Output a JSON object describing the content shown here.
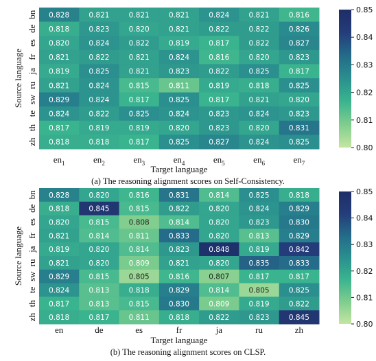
{
  "chart_data": [
    {
      "type": "heatmap",
      "caption": "(a) The reasoning alignment scores on Self-Consistency.",
      "xlabel": "Target language",
      "ylabel": "Source language",
      "x_ticks": [
        "en1",
        "en2",
        "en3",
        "en4",
        "en5",
        "en6",
        "en7"
      ],
      "y_ticks": [
        "bn",
        "de",
        "es",
        "fr",
        "ja",
        "ru",
        "sw",
        "te",
        "th",
        "zh"
      ],
      "values": [
        [
          0.828,
          0.821,
          0.821,
          0.821,
          0.824,
          0.821,
          0.816
        ],
        [
          0.818,
          0.823,
          0.82,
          0.821,
          0.822,
          0.822,
          0.826
        ],
        [
          0.82,
          0.824,
          0.822,
          0.819,
          0.817,
          0.822,
          0.827
        ],
        [
          0.821,
          0.822,
          0.821,
          0.824,
          0.816,
          0.82,
          0.823
        ],
        [
          0.819,
          0.825,
          0.821,
          0.823,
          0.822,
          0.825,
          0.817
        ],
        [
          0.821,
          0.824,
          0.815,
          0.811,
          0.819,
          0.818,
          0.825
        ],
        [
          0.829,
          0.824,
          0.817,
          0.825,
          0.817,
          0.821,
          0.82
        ],
        [
          0.824,
          0.822,
          0.825,
          0.824,
          0.823,
          0.824,
          0.823
        ],
        [
          0.817,
          0.819,
          0.819,
          0.82,
          0.823,
          0.82,
          0.831
        ],
        [
          0.818,
          0.818,
          0.817,
          0.825,
          0.827,
          0.824,
          0.825
        ]
      ],
      "colorbar": {
        "range": [
          0.8,
          0.85
        ],
        "ticks": [
          "0.80",
          "0.81",
          "0.82",
          "0.83",
          "0.84",
          "0.85"
        ]
      },
      "colormap": [
        "#c5e5a2",
        "#7fcd8e",
        "#3bb48f",
        "#2a8f8e",
        "#246b89",
        "#243d7a",
        "#1e2d66"
      ]
    },
    {
      "type": "heatmap",
      "caption": "(b) The reasoning alignment scores on CLSP.",
      "xlabel": "Target language",
      "ylabel": "Source language",
      "x_ticks": [
        "en",
        "de",
        "es",
        "fr",
        "ja",
        "ru",
        "zh"
      ],
      "y_ticks": [
        "bn",
        "de",
        "es",
        "fr",
        "ja",
        "ru",
        "sw",
        "te",
        "th",
        "zh"
      ],
      "values": [
        [
          0.828,
          0.82,
          0.816,
          0.831,
          0.814,
          0.825,
          0.818
        ],
        [
          0.818,
          0.845,
          0.815,
          0.822,
          0.82,
          0.824,
          0.829
        ],
        [
          0.82,
          0.815,
          0.808,
          0.814,
          0.82,
          0.823,
          0.83
        ],
        [
          0.821,
          0.814,
          0.811,
          0.833,
          0.82,
          0.813,
          0.829
        ],
        [
          0.819,
          0.82,
          0.814,
          0.823,
          0.848,
          0.819,
          0.842
        ],
        [
          0.821,
          0.82,
          0.809,
          0.821,
          0.82,
          0.835,
          0.833
        ],
        [
          0.829,
          0.815,
          0.805,
          0.816,
          0.807,
          0.817,
          0.817
        ],
        [
          0.824,
          0.813,
          0.818,
          0.829,
          0.814,
          0.805,
          0.825
        ],
        [
          0.817,
          0.813,
          0.815,
          0.83,
          0.809,
          0.819,
          0.822
        ],
        [
          0.818,
          0.817,
          0.811,
          0.818,
          0.822,
          0.823,
          0.845
        ]
      ],
      "colorbar": {
        "range": [
          0.8,
          0.85
        ],
        "ticks": [
          "0.80",
          "0.81",
          "0.82",
          "0.83",
          "0.84",
          "0.85"
        ]
      },
      "colormap": [
        "#c5e5a2",
        "#7fcd8e",
        "#3bb48f",
        "#2a8f8e",
        "#246b89",
        "#243d7a",
        "#1e2d66"
      ]
    }
  ]
}
